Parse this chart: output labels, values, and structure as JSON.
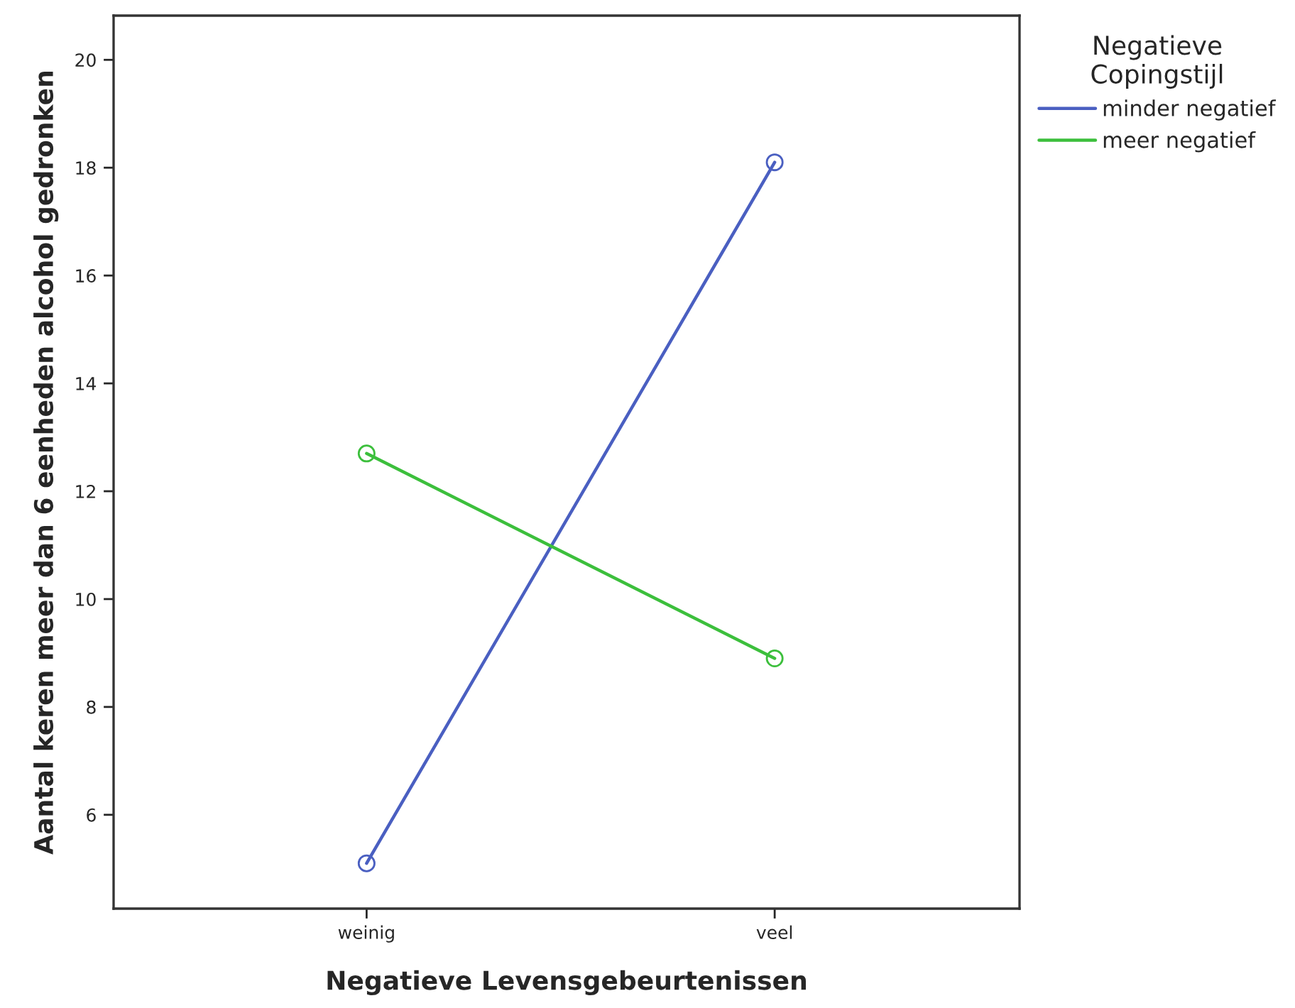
{
  "chart_data": {
    "type": "line",
    "xlabel": "Negatieve Levensgebeurtenissen",
    "ylabel": "Aantal keren meer dan 6 eenheden alcohol gedronken",
    "legend_title": "Negatieve\nCopingstijl",
    "categories": [
      "weinig",
      "veel"
    ],
    "series": [
      {
        "name": "minder negatief",
        "color": "#4a5fc1",
        "values": [
          5.1,
          18.1
        ]
      },
      {
        "name": "meer negatief",
        "color": "#3cbf3c",
        "values": [
          12.7,
          8.9
        ]
      }
    ],
    "ylim": [
      4.26,
      20.82
    ],
    "yticks": [
      6,
      8,
      10,
      12,
      14,
      16,
      18,
      20
    ],
    "grid": false,
    "legend": "top right",
    "marker": "circle",
    "line_style": "solid"
  }
}
